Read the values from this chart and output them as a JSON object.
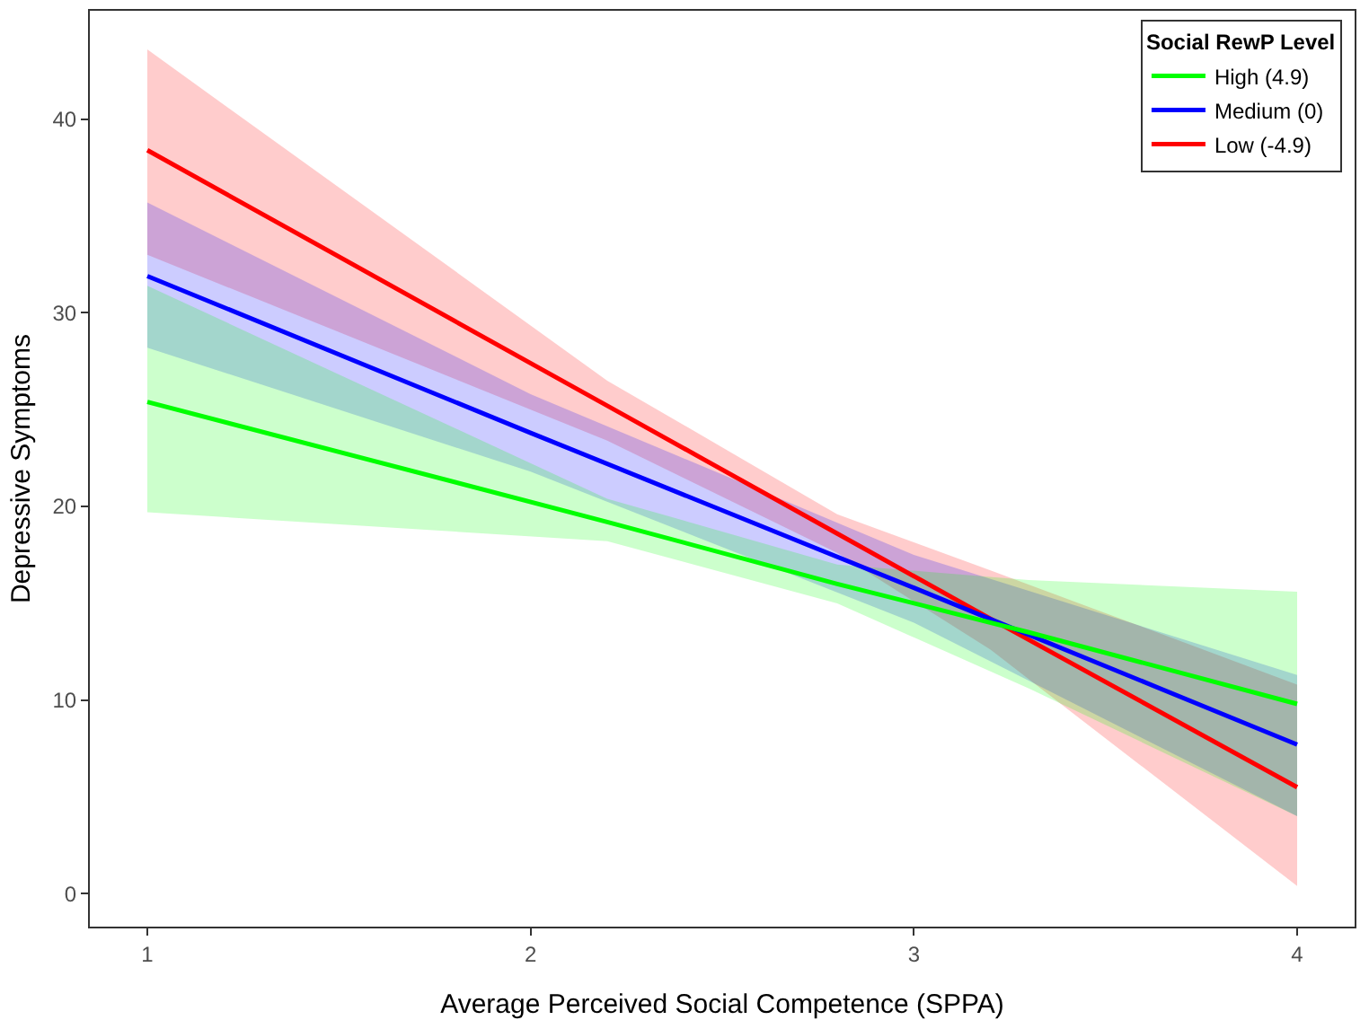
{
  "chart_data": {
    "type": "line",
    "xlabel": "Average Perceived Social Competence (SPPA)",
    "ylabel": "Depressive Symptoms",
    "legend_title": "Social RewP Level",
    "xlim": [
      0.85,
      4.15
    ],
    "xticks": [
      1,
      2,
      3,
      4
    ],
    "ylim": [
      -1.7,
      45.6
    ],
    "yticks": [
      0,
      10,
      20,
      30,
      40
    ],
    "grid": false,
    "legend": "top right",
    "series": [
      {
        "name": "Low (-4.9)",
        "color": "#ff0000",
        "x": [
          1,
          2.2,
          2.8,
          3.2,
          4
        ],
        "values": [
          38.4,
          25.2,
          18.6,
          14.2,
          5.5
        ],
        "lower": [
          33.0,
          23.4,
          17.6,
          12.6,
          0.4
        ],
        "upper": [
          43.6,
          26.5,
          19.6,
          16.7,
          10.8
        ]
      },
      {
        "name": "Medium (0)",
        "color": "#0000ff",
        "x": [
          1,
          2,
          3,
          4
        ],
        "values": [
          31.9,
          23.8,
          15.8,
          7.7
        ],
        "lower": [
          28.2,
          21.8,
          14.0,
          4.0
        ],
        "upper": [
          35.7,
          25.8,
          17.5,
          11.3
        ]
      },
      {
        "name": "High (4.9)",
        "color": "#00ff00",
        "x": [
          1,
          2.2,
          2.8,
          3.3,
          4
        ],
        "values": [
          25.4,
          19.2,
          16.0,
          13.5,
          9.8
        ],
        "lower": [
          19.7,
          18.2,
          15.0,
          10.6,
          4.0
        ],
        "upper": [
          31.4,
          20.4,
          17.0,
          16.2,
          15.6
        ]
      }
    ]
  }
}
